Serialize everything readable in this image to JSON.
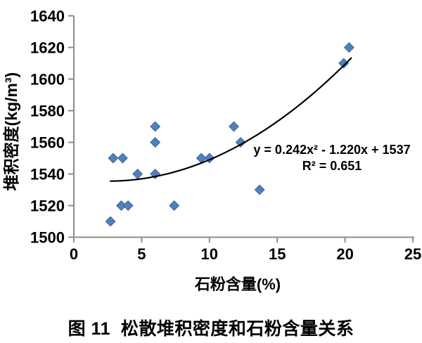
{
  "figure": {
    "caption": "图 11  松散堆积密度和石粉含量关系"
  },
  "chart_data": {
    "type": "scatter",
    "title": "",
    "xlabel": "石粉含量(%)",
    "ylabel": "堆积密度(kg/m³)",
    "xlim": [
      0,
      25
    ],
    "ylim": [
      1500,
      1640
    ],
    "xticks": [
      0,
      5,
      10,
      15,
      20,
      25
    ],
    "yticks": [
      1500,
      1520,
      1540,
      1560,
      1580,
      1600,
      1620,
      1640
    ],
    "grid": false,
    "legend_position": "none",
    "marker": {
      "shape": "diamond",
      "color": "#4F81BD",
      "border_color": "#3C6498",
      "size": 13.5
    },
    "points": [
      {
        "x": 2.7,
        "y": 1510
      },
      {
        "x": 2.9,
        "y": 1550
      },
      {
        "x": 3.6,
        "y": 1550
      },
      {
        "x": 3.5,
        "y": 1520
      },
      {
        "x": 4.0,
        "y": 1520
      },
      {
        "x": 4.7,
        "y": 1540
      },
      {
        "x": 6.0,
        "y": 1540
      },
      {
        "x": 6.0,
        "y": 1560
      },
      {
        "x": 6.0,
        "y": 1570
      },
      {
        "x": 7.4,
        "y": 1520
      },
      {
        "x": 9.4,
        "y": 1550
      },
      {
        "x": 10.0,
        "y": 1550
      },
      {
        "x": 11.8,
        "y": 1570
      },
      {
        "x": 12.3,
        "y": 1560
      },
      {
        "x": 13.7,
        "y": 1530
      },
      {
        "x": 19.9,
        "y": 1610
      },
      {
        "x": 20.3,
        "y": 1620
      }
    ],
    "trendline": {
      "type": "polynomial",
      "order": 2,
      "coefficients": {
        "a": 0.242,
        "b": -1.22,
        "c": 1537
      },
      "x_range": [
        2.7,
        20.6
      ],
      "color": "#000000",
      "equation_label": "y = 0.242x² - 1.220x + 1537",
      "r_squared_label": "R² = 0.651"
    },
    "axis_color": "#8C8C8C",
    "text_color": "#000000"
  }
}
